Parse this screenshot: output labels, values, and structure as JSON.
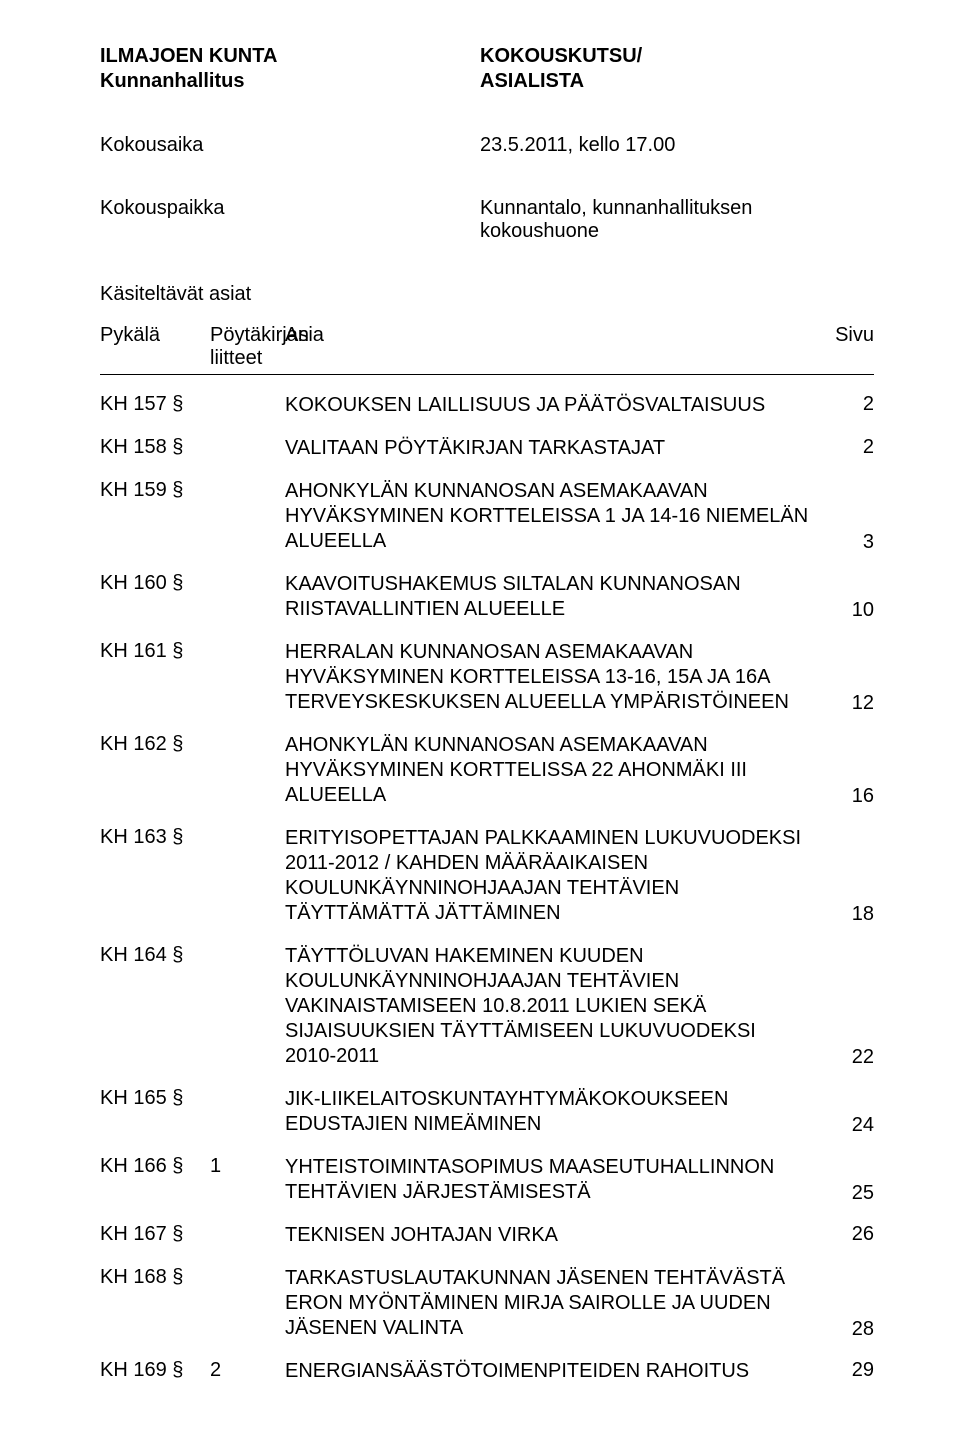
{
  "header": {
    "org": "ILMAJOEN KUNTA",
    "committee": "Kunnanhallitus",
    "doc_type_1": "KOKOUSKUTSU/",
    "doc_type_2": "ASIALISTA"
  },
  "meeting": {
    "time_label": "Kokousaika",
    "time_value": "23.5.2011, kello 17.00",
    "place_label": "Kokouspaikka",
    "place_value": "Kunnantalo, kunnanhallituksen kokoushuone",
    "items_label": "Käsiteltävät asiat"
  },
  "columns": {
    "pykala": "Pykälä",
    "liite_l1": "Pöytäkirjan",
    "liite_l2": "liitteet",
    "asia": "Asia",
    "sivu": "Sivu"
  },
  "items": [
    {
      "id": "KH 157 §",
      "att": "",
      "title": "KOKOUKSEN LAILLISUUS JA PÄÄTÖSVALTAISUUS",
      "page": "2",
      "single": true
    },
    {
      "id": "KH 158 §",
      "att": "",
      "title": "VALITAAN PÖYTÄKIRJAN TARKASTAJAT",
      "page": "2",
      "single": true
    },
    {
      "id": "KH 159 §",
      "att": "",
      "title": "AHONKYLÄN KUNNANOSAN ASEMAKAAVAN HYVÄKSYMINEN KORTTELEISSA 1 JA 14-16 NIEMELÄN ALUEELLA",
      "page": "3"
    },
    {
      "id": "KH 160 §",
      "att": "",
      "title": "KAAVOITUSHAKEMUS SILTALAN KUNNANOSAN RIISTAVALLINTIEN ALUEELLE",
      "page": "10"
    },
    {
      "id": "KH 161 §",
      "att": "",
      "title": "HERRALAN KUNNANOSAN ASEMAKAAVAN HYVÄKSYMINEN  KORTTELEISSA 13-16, 15A JA 16A TERVEYSKESKUKSEN ALUEELLA YMPÄRISTÖINEEN",
      "page": "12"
    },
    {
      "id": "KH 162 §",
      "att": "",
      "title": "AHONKYLÄN KUNNANOSAN ASEMAKAAVAN HYVÄKSYMINEN KORTTELISSA 22 AHONMÄKI III ALUEELLA",
      "page": "16"
    },
    {
      "id": "KH 163 §",
      "att": "",
      "title": "ERITYISOPETTAJAN PALKKAAMINEN LUKUVUODEKSI 2011-2012 / KAHDEN MÄÄRÄAIKAISEN KOULUNKÄYNNINOHJAAJAN TEHTÄVIEN TÄYTTÄMÄTTÄ JÄTTÄMINEN",
      "page": "18"
    },
    {
      "id": "KH 164 §",
      "att": "",
      "title": "TÄYTTÖLUVAN HAKEMINEN KUUDEN KOULUNKÄYNNINOHJAAJAN TEHTÄVIEN VAKINAISTAMISEEN 10.8.2011 LUKIEN SEKÄ SIJAISUUKSIEN TÄYTTÄMISEEN LUKUVUODEKSI 2010-2011",
      "page": "22"
    },
    {
      "id": "KH 165 §",
      "att": "",
      "title": "JIK-LIIKELAITOSKUNTAYHTYMÄKOKOUKSEEN EDUSTAJIEN NIMEÄMINEN",
      "page": "24"
    },
    {
      "id": "KH 166 §",
      "att": "1",
      "title": "YHTEISTOIMINTASOPIMUS MAASEUTUHALLINNON TEHTÄVIEN JÄRJESTÄMISESTÄ",
      "page": "25"
    },
    {
      "id": "KH 167 §",
      "att": "",
      "title": "TEKNISEN JOHTAJAN VIRKA",
      "page": "26",
      "single": true
    },
    {
      "id": "KH 168 §",
      "att": "",
      "title": "TARKASTUSLAUTAKUNNAN JÄSENEN TEHTÄVÄSTÄ ERON MYÖNTÄMINEN MIRJA SAIROLLE JA UUDEN JÄSENEN VALINTA",
      "page": "28"
    },
    {
      "id": "KH 169 §",
      "att": "2",
      "title": "ENERGIANSÄÄSTÖTOIMENPITEIDEN RAHOITUS",
      "page": "29",
      "single": true
    }
  ]
}
